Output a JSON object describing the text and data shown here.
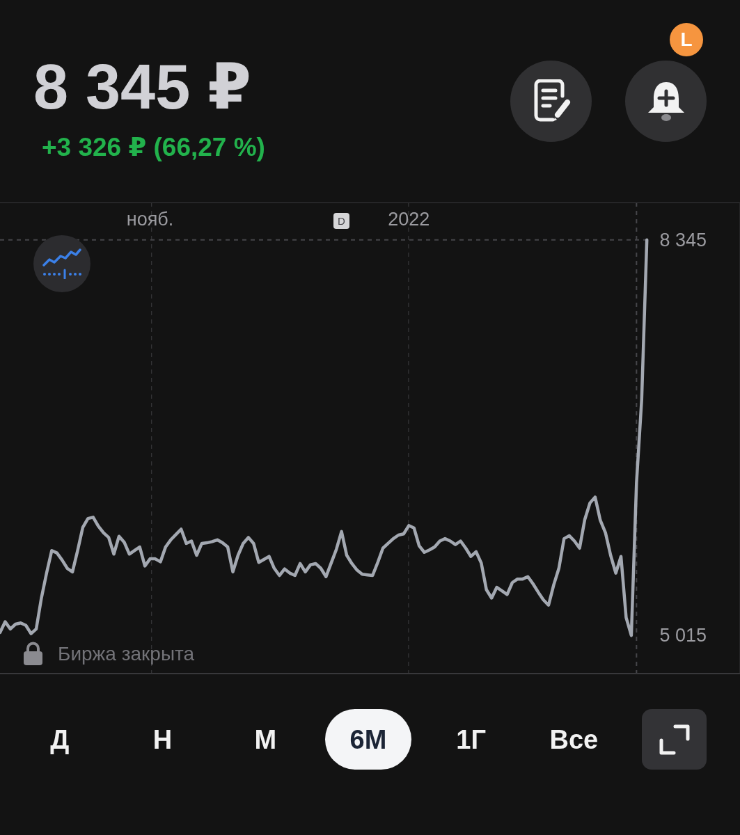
{
  "chart_data": {
    "type": "line",
    "title": "8 345 ₽",
    "subtitle": "+3 326 ₽ (66,27 %)",
    "categories": [
      null,
      null,
      null,
      null,
      null,
      null,
      null,
      null,
      null,
      null,
      null,
      null,
      null,
      null,
      null,
      null,
      null,
      null,
      null,
      null,
      null,
      null,
      null,
      null,
      null,
      null,
      null,
      null,
      null,
      "нояб.",
      null,
      null,
      null,
      null,
      null,
      null,
      null,
      null,
      null,
      null,
      null,
      null,
      null,
      null,
      null,
      null,
      null,
      null,
      null,
      null,
      null,
      null,
      null,
      null,
      null,
      null,
      null,
      null,
      null,
      null,
      null,
      null,
      null,
      null,
      null,
      null,
      null,
      null,
      null,
      null,
      null,
      null,
      null,
      null,
      null,
      null,
      null,
      null,
      null,
      "2022",
      null,
      null,
      null,
      null,
      null,
      null,
      null,
      null,
      null,
      null,
      null,
      null,
      null,
      null,
      null,
      null,
      null,
      null,
      null,
      null,
      null,
      null,
      null,
      null,
      null,
      null,
      null,
      null,
      null,
      null,
      null,
      null,
      null,
      null,
      null,
      null,
      null,
      null,
      null,
      null,
      null,
      null,
      null,
      null,
      null,
      null,
      null,
      null,
      null,
      null,
      null,
      null,
      null,
      null,
      null,
      null,
      null,
      null,
      null,
      null,
      null,
      null,
      null,
      null
    ],
    "values": [
      5040,
      5130,
      5070,
      5110,
      5120,
      5100,
      5030,
      5070,
      5330,
      5540,
      5730,
      5710,
      5650,
      5580,
      5550,
      5730,
      5925,
      6000,
      6010,
      5935,
      5880,
      5840,
      5700,
      5850,
      5800,
      5700,
      5730,
      5760,
      5600,
      5660,
      5660,
      5635,
      5760,
      5820,
      5865,
      5910,
      5790,
      5810,
      5690,
      5790,
      5795,
      5805,
      5820,
      5795,
      5760,
      5550,
      5690,
      5790,
      5840,
      5790,
      5630,
      5655,
      5680,
      5580,
      5520,
      5575,
      5540,
      5520,
      5620,
      5550,
      5610,
      5620,
      5580,
      5510,
      5625,
      5740,
      5890,
      5690,
      5620,
      5565,
      5530,
      5525,
      5520,
      5630,
      5750,
      5790,
      5830,
      5860,
      5870,
      5940,
      5920,
      5770,
      5715,
      5735,
      5760,
      5810,
      5830,
      5810,
      5780,
      5810,
      5750,
      5680,
      5720,
      5625,
      5400,
      5330,
      5420,
      5390,
      5360,
      5460,
      5490,
      5490,
      5510,
      5450,
      5380,
      5315,
      5270,
      5440,
      5580,
      5830,
      5855,
      5810,
      5750,
      5990,
      6130,
      6180,
      5985,
      5880,
      5690,
      5540,
      5680,
      5165,
      5015,
      6300,
      7000,
      8345,
      null,
      null,
      null,
      null,
      null,
      null,
      null,
      null,
      null,
      null,
      null,
      null,
      null,
      null,
      null,
      null,
      null,
      null
    ],
    "color": "#a3a8b1",
    "ylim": [
      4700,
      8660
    ],
    "yticks": [
      {
        "value": 5015,
        "label": "5 015"
      },
      {
        "value": 8345,
        "label": "8 345"
      }
    ],
    "grid": "x",
    "ref_lines": [
      {
        "axis": "y",
        "value": 8345,
        "line_style": "dashed"
      }
    ],
    "annotations": [
      "Биржа закрыта",
      "D",
      "L",
      "Д",
      "Н",
      "М",
      "6М",
      "1Г",
      "Все"
    ]
  }
}
